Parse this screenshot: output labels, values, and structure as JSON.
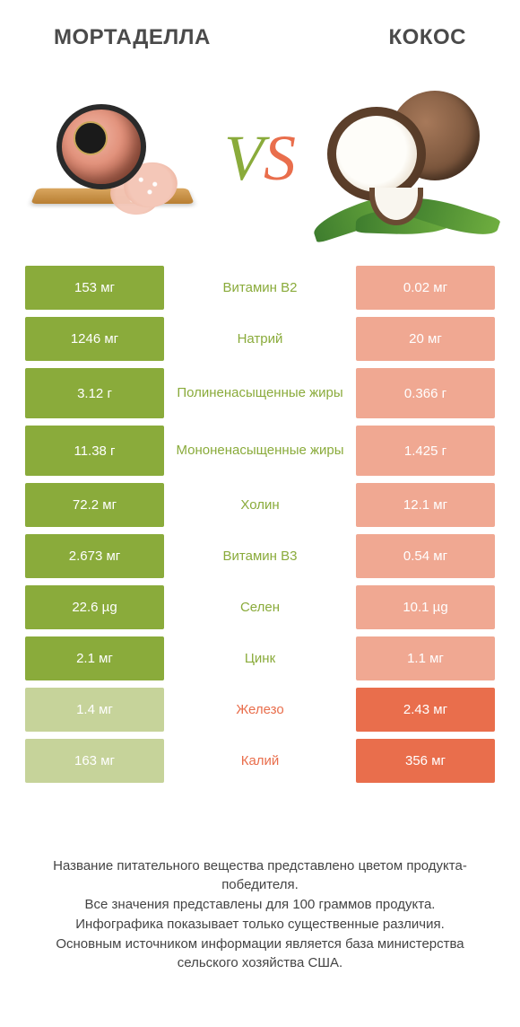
{
  "colors": {
    "left_win": "#8aab3b",
    "left_lose": "#c6d39a",
    "right_win": "#e96e4c",
    "right_lose": "#f0a892",
    "mid_left": "#8aab3b",
    "mid_right": "#e96e4c"
  },
  "header": {
    "left_title": "МОРТАДЕЛЛА",
    "right_title": "КОКОС",
    "vs_v": "V",
    "vs_s": "S"
  },
  "rows": [
    {
      "left": "153 мг",
      "mid": "Витамин B2",
      "right": "0.02 мг",
      "winner": "left",
      "tall": false
    },
    {
      "left": "1246 мг",
      "mid": "Натрий",
      "right": "20 мг",
      "winner": "left",
      "tall": false
    },
    {
      "left": "3.12 г",
      "mid": "Полиненасыщенные жиры",
      "right": "0.366 г",
      "winner": "left",
      "tall": true
    },
    {
      "left": "11.38 г",
      "mid": "Мононенасыщенные жиры",
      "right": "1.425 г",
      "winner": "left",
      "tall": true
    },
    {
      "left": "72.2 мг",
      "mid": "Холин",
      "right": "12.1 мг",
      "winner": "left",
      "tall": false
    },
    {
      "left": "2.673 мг",
      "mid": "Витамин B3",
      "right": "0.54 мг",
      "winner": "left",
      "tall": false
    },
    {
      "left": "22.6 µg",
      "mid": "Селен",
      "right": "10.1 µg",
      "winner": "left",
      "tall": false
    },
    {
      "left": "2.1 мг",
      "mid": "Цинк",
      "right": "1.1 мг",
      "winner": "left",
      "tall": false
    },
    {
      "left": "1.4 мг",
      "mid": "Железо",
      "right": "2.43 мг",
      "winner": "right",
      "tall": false
    },
    {
      "left": "163 мг",
      "mid": "Калий",
      "right": "356 мг",
      "winner": "right",
      "tall": false
    }
  ],
  "footer": {
    "line1": "Название питательного вещества представлено цветом продукта-победителя.",
    "line2": "Все значения представлены для 100 граммов продукта.",
    "line3": "Инфографика показывает только существенные различия.",
    "line4": "Основным источником информации является база министерства сельского хозяйства США."
  }
}
